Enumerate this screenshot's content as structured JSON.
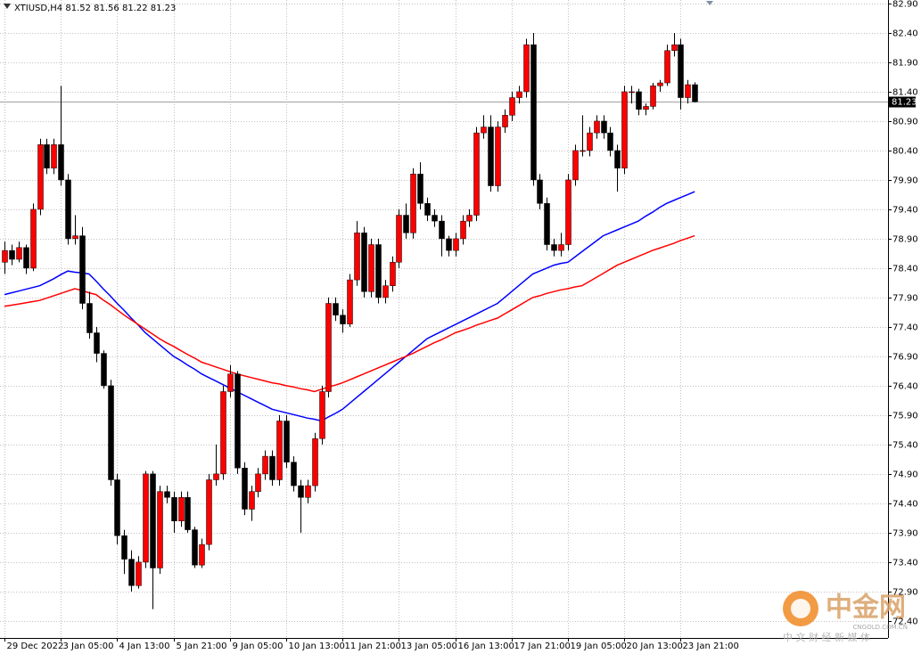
{
  "chart_data": {
    "type": "candlestick",
    "title": "XTIUSD,H4  81.52 81.56 81.22 81.23",
    "categories": [
      "29 Dec 2022",
      null,
      null,
      null,
      null,
      null,
      null,
      null,
      "3 Jan 05:00",
      null,
      null,
      null,
      null,
      null,
      null,
      null,
      "4 Jan 13:00",
      null,
      null,
      null,
      null,
      null,
      null,
      null,
      "5 Jan 21:00",
      null,
      null,
      null,
      null,
      null,
      null,
      null,
      "9 Jan 05:00",
      null,
      null,
      null,
      null,
      null,
      null,
      null,
      "10 Jan 13:00",
      null,
      null,
      null,
      null,
      null,
      null,
      null,
      "11 Jan 21:00",
      null,
      null,
      null,
      null,
      null,
      null,
      null,
      "13 Jan 05:00",
      null,
      null,
      null,
      null,
      null,
      null,
      null,
      "16 Jan 13:00",
      null,
      null,
      null,
      null,
      null,
      null,
      null,
      "17 Jan 21:00",
      null,
      null,
      null,
      null,
      null,
      null,
      null,
      "19 Jan 05:00",
      null,
      null,
      null,
      null,
      null,
      null,
      null,
      "20 Jan 13:00",
      null,
      null,
      null,
      null,
      null,
      null,
      null,
      "23 Jan 21:00",
      null,
      null
    ],
    "open": [
      78.5,
      78.7,
      78.55,
      78.75,
      78.4,
      79.4,
      80.5,
      80.1,
      80.5,
      79.9,
      78.9,
      78.95,
      77.8,
      77.3,
      76.95,
      76.4,
      74.8,
      73.85,
      73.45,
      73.0,
      73.4,
      74.9,
      73.3,
      74.6,
      74.5,
      74.1,
      74.5,
      73.95,
      73.35,
      73.7,
      74.8,
      74.9,
      76.3,
      76.6,
      75.0,
      74.3,
      74.6,
      74.9,
      75.2,
      74.8,
      75.8,
      75.1,
      74.7,
      74.5,
      74.7,
      75.5,
      76.3,
      77.8,
      77.6,
      77.45,
      78.2,
      79.0,
      78.0,
      78.8,
      77.9,
      78.1,
      78.5,
      79.3,
      79.0,
      80.0,
      79.5,
      79.3,
      79.2,
      78.9,
      78.7,
      78.9,
      79.2,
      79.3,
      80.7,
      80.8,
      79.8,
      80.8,
      81.0,
      81.3,
      81.4,
      82.2,
      79.9,
      79.5,
      78.8,
      78.7,
      78.8,
      79.9,
      80.4,
      80.4,
      80.7,
      80.9,
      80.7,
      80.4,
      80.1,
      81.4,
      81.4,
      81.1,
      81.15,
      81.5,
      81.55,
      82.1,
      82.2,
      81.3,
      81.52
    ],
    "high": [
      78.85,
      78.8,
      78.85,
      78.8,
      79.5,
      80.6,
      80.6,
      80.6,
      81.5,
      80.0,
      79.3,
      79.1,
      78.0,
      77.4,
      77.0,
      76.5,
      74.9,
      73.95,
      73.6,
      73.5,
      74.95,
      74.95,
      74.7,
      74.7,
      74.6,
      74.6,
      74.6,
      74.0,
      73.8,
      74.9,
      75.4,
      76.4,
      76.75,
      76.65,
      75.1,
      74.7,
      75.0,
      75.3,
      75.3,
      75.9,
      75.9,
      75.2,
      74.8,
      74.8,
      75.6,
      76.4,
      77.9,
      77.9,
      77.7,
      78.3,
      79.2,
      79.1,
      78.9,
      78.9,
      78.2,
      78.6,
      79.4,
      79.5,
      80.1,
      80.2,
      79.6,
      79.4,
      79.3,
      78.95,
      79.0,
      79.3,
      79.4,
      80.8,
      81.0,
      81.0,
      80.9,
      81.1,
      81.4,
      81.5,
      82.3,
      82.4,
      80.0,
      79.6,
      78.9,
      79.0,
      80.0,
      80.5,
      81.0,
      80.8,
      81.0,
      81.0,
      80.8,
      80.5,
      81.5,
      81.5,
      81.45,
      81.2,
      81.55,
      81.6,
      82.2,
      82.4,
      82.3,
      81.6,
      81.56
    ],
    "low": [
      78.3,
      78.45,
      78.5,
      78.3,
      78.35,
      79.3,
      80.0,
      80.0,
      79.8,
      78.8,
      78.8,
      77.7,
      77.2,
      76.8,
      76.35,
      74.7,
      73.7,
      73.2,
      72.9,
      72.95,
      73.3,
      72.6,
      73.2,
      74.4,
      73.9,
      74.0,
      73.9,
      73.3,
      73.3,
      73.6,
      74.7,
      74.8,
      76.2,
      74.9,
      74.2,
      74.1,
      74.5,
      74.8,
      74.7,
      74.7,
      75.0,
      74.6,
      73.9,
      74.4,
      74.6,
      75.4,
      76.2,
      77.5,
      77.3,
      77.4,
      78.1,
      77.9,
      77.9,
      77.8,
      77.8,
      78.0,
      78.4,
      78.9,
      78.9,
      79.4,
      79.2,
      79.1,
      78.6,
      78.6,
      78.6,
      78.8,
      79.1,
      79.2,
      80.6,
      79.7,
      79.7,
      80.7,
      80.9,
      81.2,
      81.3,
      79.8,
      79.4,
      78.7,
      78.6,
      78.6,
      78.7,
      79.8,
      80.3,
      80.3,
      80.6,
      80.6,
      80.3,
      79.7,
      80.0,
      81.2,
      81.0,
      81.0,
      81.1,
      81.4,
      81.5,
      82.0,
      81.1,
      81.2,
      81.22
    ],
    "close": [
      78.7,
      78.55,
      78.75,
      78.4,
      79.4,
      80.5,
      80.1,
      80.5,
      79.9,
      78.9,
      78.95,
      77.8,
      77.3,
      76.95,
      76.4,
      74.8,
      73.85,
      73.45,
      73.0,
      73.4,
      74.9,
      73.3,
      74.6,
      74.5,
      74.1,
      74.5,
      73.95,
      73.35,
      73.7,
      74.8,
      74.9,
      76.3,
      76.6,
      75.0,
      74.3,
      74.6,
      74.9,
      75.2,
      74.8,
      75.8,
      75.1,
      74.7,
      74.5,
      74.7,
      75.5,
      76.3,
      77.8,
      77.6,
      77.45,
      78.2,
      79.0,
      78.0,
      78.8,
      77.9,
      78.1,
      78.5,
      79.3,
      79.0,
      80.0,
      79.5,
      79.3,
      79.2,
      78.9,
      78.7,
      78.9,
      79.2,
      79.3,
      80.7,
      80.8,
      79.8,
      80.8,
      81.0,
      81.3,
      81.4,
      82.2,
      79.9,
      79.5,
      78.8,
      78.7,
      78.8,
      79.9,
      80.4,
      80.4,
      80.7,
      80.9,
      80.7,
      80.4,
      80.1,
      81.4,
      81.4,
      81.1,
      81.15,
      81.5,
      81.55,
      82.1,
      82.2,
      81.3,
      81.52,
      81.23
    ],
    "up_color": "#ff0000",
    "down_color": "#000000",
    "series": [
      {
        "color": "#0000ff",
        "values": [
          77.95,
          77.98,
          78.01,
          78.04,
          78.07,
          78.1,
          78.16,
          78.22,
          78.29,
          78.35,
          78.33,
          78.32,
          78.3,
          78.18,
          78.05,
          77.93,
          77.8,
          77.68,
          77.55,
          77.43,
          77.3,
          77.2,
          77.1,
          77.0,
          76.9,
          76.83,
          76.75,
          76.68,
          76.6,
          76.54,
          76.48,
          76.42,
          76.36,
          76.3,
          76.24,
          76.18,
          76.12,
          76.06,
          76.0,
          75.97,
          75.94,
          75.91,
          75.88,
          75.85,
          75.83,
          75.8,
          75.87,
          75.93,
          76.0,
          76.1,
          76.2,
          76.3,
          76.4,
          76.5,
          76.6,
          76.7,
          76.8,
          76.9,
          77.0,
          77.1,
          77.2,
          77.26,
          77.32,
          77.38,
          77.44,
          77.5,
          77.56,
          77.62,
          77.68,
          77.74,
          77.8,
          77.9,
          78.0,
          78.1,
          78.2,
          78.3,
          78.35,
          78.4,
          78.45,
          78.48,
          78.5,
          78.59,
          78.68,
          78.77,
          78.86,
          78.95,
          79.0,
          79.05,
          79.1,
          79.15,
          79.2,
          79.28,
          79.35,
          79.43,
          79.5,
          79.55,
          79.6,
          79.65,
          79.7
        ]
      },
      {
        "color": "#ff0000",
        "values": [
          77.75,
          77.77,
          77.79,
          77.81,
          77.83,
          77.85,
          77.89,
          77.93,
          77.97,
          78.01,
          78.05,
          78.02,
          77.98,
          77.95,
          77.86,
          77.78,
          77.69,
          77.6,
          77.52,
          77.44,
          77.36,
          77.28,
          77.2,
          77.13,
          77.07,
          77.0,
          76.93,
          76.87,
          76.8,
          76.76,
          76.72,
          76.68,
          76.64,
          76.6,
          76.57,
          76.54,
          76.51,
          76.48,
          76.45,
          76.43,
          76.4,
          76.38,
          76.35,
          76.33,
          76.3,
          76.34,
          76.38,
          76.41,
          76.45,
          76.5,
          76.55,
          76.6,
          76.65,
          76.7,
          76.75,
          76.8,
          76.85,
          76.9,
          76.95,
          77.01,
          77.07,
          77.13,
          77.18,
          77.24,
          77.3,
          77.34,
          77.38,
          77.43,
          77.47,
          77.51,
          77.55,
          77.62,
          77.69,
          77.76,
          77.83,
          77.9,
          77.93,
          77.97,
          78.0,
          78.03,
          78.05,
          78.08,
          78.1,
          78.17,
          78.24,
          78.31,
          78.38,
          78.45,
          78.5,
          78.55,
          78.6,
          78.65,
          78.7,
          78.74,
          78.78,
          78.82,
          78.87,
          78.91,
          78.95
        ]
      }
    ],
    "ylim": [
      72.11,
      82.96
    ],
    "yticks": [
      {
        "value": 82.9,
        "label": "82.90"
      },
      {
        "value": 82.4,
        "label": "82.40"
      },
      {
        "value": 81.9,
        "label": "81.90"
      },
      {
        "value": 81.4,
        "label": "81.40"
      },
      {
        "value": 80.9,
        "label": "80.90"
      },
      {
        "value": 80.4,
        "label": "80.40"
      },
      {
        "value": 79.9,
        "label": "79.90"
      },
      {
        "value": 79.4,
        "label": "79.40"
      },
      {
        "value": 78.9,
        "label": "78.90"
      },
      {
        "value": 78.4,
        "label": "78.40"
      },
      {
        "value": 77.9,
        "label": "77.90"
      },
      {
        "value": 77.4,
        "label": "77.40"
      },
      {
        "value": 76.9,
        "label": "76.90"
      },
      {
        "value": 76.4,
        "label": "76.40"
      },
      {
        "value": 75.9,
        "label": "75.90"
      },
      {
        "value": 75.4,
        "label": "75.40"
      },
      {
        "value": 74.9,
        "label": "74.90"
      },
      {
        "value": 74.4,
        "label": "74.40"
      },
      {
        "value": 73.9,
        "label": "73.90"
      },
      {
        "value": 73.4,
        "label": "73.40"
      },
      {
        "value": 72.9,
        "label": "72.90"
      },
      {
        "value": 72.4,
        "label": "72.40"
      }
    ],
    "grid": true,
    "last_price": 81.23
  },
  "watermark": {
    "name": "中金网",
    "site": "CNGOLD.COM.CN",
    "tagline": "中 文 财 经 新 媒 体"
  }
}
